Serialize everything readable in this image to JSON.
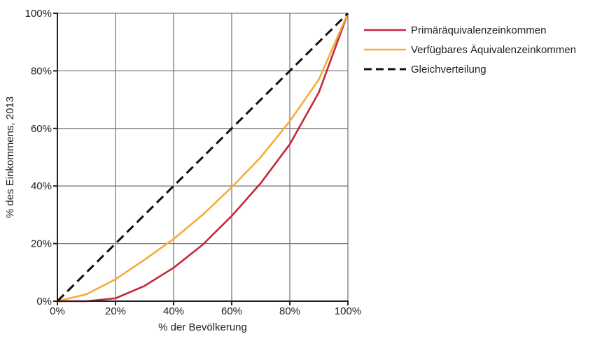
{
  "chart_data": {
    "type": "line",
    "title": "",
    "xlabel": "% der Bevölkerung",
    "ylabel": "% des Einkommens, 2013",
    "xlim": [
      0,
      100
    ],
    "ylim": [
      0,
      100
    ],
    "x_ticks": [
      "0%",
      "20%",
      "40%",
      "60%",
      "80%",
      "100%"
    ],
    "y_ticks": [
      "0%",
      "20%",
      "40%",
      "60%",
      "80%",
      "100%"
    ],
    "grid": true,
    "legend_position": "right",
    "series": [
      {
        "name": "Primäräquivalenzeinkommen",
        "color": "#c3283a",
        "dash": "solid",
        "x": [
          0,
          10,
          20,
          30,
          40,
          50,
          60,
          70,
          80,
          90,
          100
        ],
        "y": [
          0,
          0,
          1,
          5.3,
          11.6,
          19.6,
          29.6,
          41,
          54.5,
          72.5,
          100
        ]
      },
      {
        "name": "Verfügbares Äquivalenzeinkommen",
        "color": "#f5ac3c",
        "dash": "solid",
        "x": [
          0,
          10,
          20,
          30,
          40,
          50,
          60,
          70,
          80,
          90,
          100
        ],
        "y": [
          0,
          2.4,
          7.6,
          14.4,
          21.6,
          30,
          39.6,
          50,
          62.5,
          77,
          100
        ]
      },
      {
        "name": "Gleichverteilung",
        "color": "#111111",
        "dash": "dashed",
        "x": [
          0,
          100
        ],
        "y": [
          0,
          100
        ]
      }
    ]
  }
}
